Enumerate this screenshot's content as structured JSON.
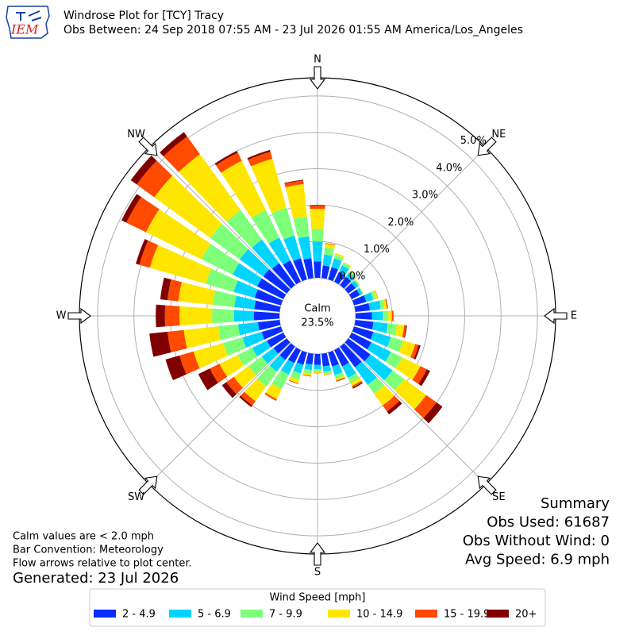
{
  "chart_data": {
    "type": "windrose",
    "title": "Windrose Plot for [TCY] Tracy",
    "subtitle": "Obs Between: 24 Sep 2018 07:55 AM - 23 Jul 2026 01:55 AM America/Los_Angeles",
    "logo_text": "IEM",
    "x": [
      0,
      10,
      20,
      30,
      40,
      50,
      60,
      70,
      80,
      90,
      100,
      110,
      120,
      130,
      140,
      150,
      160,
      170,
      180,
      190,
      200,
      210,
      220,
      230,
      240,
      250,
      260,
      270,
      280,
      290,
      300,
      310,
      320,
      330,
      340,
      350
    ],
    "compass_labels": [
      "N",
      "NE",
      "E",
      "SE",
      "S",
      "SW",
      "W",
      "NW"
    ],
    "ylim": [
      0,
      5.5
    ],
    "yticks": [
      {
        "value": 0,
        "label": "0.0%"
      },
      {
        "value": 1,
        "label": "1.0%"
      },
      {
        "value": 2,
        "label": "2.0%"
      },
      {
        "value": 3,
        "label": "3.0%"
      },
      {
        "value": 4,
        "label": "4.0%"
      },
      {
        "value": 5,
        "label": "5.0%"
      }
    ],
    "grid": true,
    "calm": {
      "name": "Calm",
      "value": 23.5,
      "value_label": "23.5%"
    },
    "legend_title": "Wind Speed [mph]",
    "series": [
      {
        "name": "2 - 4.9",
        "color": "#0a2dff",
        "values": [
          0.45,
          0.35,
          0.35,
          0.3,
          0.28,
          0.25,
          0.25,
          0.35,
          0.4,
          0.45,
          0.5,
          0.55,
          0.6,
          0.75,
          0.7,
          0.5,
          0.4,
          0.35,
          0.3,
          0.3,
          0.35,
          0.4,
          0.45,
          0.45,
          0.5,
          0.55,
          0.6,
          0.7,
          0.7,
          0.75,
          0.8,
          0.8,
          0.75,
          0.65,
          0.6,
          0.55
        ]
      },
      {
        "name": "5 - 6.9",
        "color": "#00d4ff",
        "values": [
          0.55,
          0.3,
          0.25,
          0.2,
          0.15,
          0.1,
          0.08,
          0.2,
          0.3,
          0.3,
          0.4,
          0.5,
          0.6,
          0.75,
          0.6,
          0.35,
          0.25,
          0.15,
          0.12,
          0.15,
          0.25,
          0.35,
          0.4,
          0.4,
          0.45,
          0.55,
          0.55,
          0.55,
          0.55,
          0.6,
          0.75,
          0.8,
          0.8,
          0.7,
          0.65,
          0.6
        ]
      },
      {
        "name": "7 - 9.9",
        "color": "#7dff7a",
        "values": [
          0.35,
          0.2,
          0.1,
          0.08,
          0.05,
          0.03,
          0.02,
          0.08,
          0.1,
          0.15,
          0.25,
          0.35,
          0.35,
          0.4,
          0.3,
          0.15,
          0.1,
          0.05,
          0.06,
          0.1,
          0.18,
          0.45,
          0.5,
          0.45,
          0.45,
          0.55,
          0.55,
          0.6,
          0.6,
          0.8,
          0.95,
          1.0,
          1.0,
          0.85,
          0.8,
          0.55
        ]
      },
      {
        "name": "10 - 14.9",
        "color": "#ffe600",
        "values": [
          0.55,
          0.1,
          0.05,
          0.02,
          0.02,
          0.02,
          0.01,
          0.05,
          0.07,
          0.1,
          0.2,
          0.35,
          0.55,
          0.75,
          0.4,
          0.1,
          0.05,
          0.03,
          0.04,
          0.06,
          0.1,
          0.3,
          0.5,
          0.5,
          0.55,
          0.85,
          0.95,
          0.9,
          0.95,
          1.6,
          1.7,
          1.9,
          1.9,
          1.5,
          1.4,
          0.9
        ]
      },
      {
        "name": "15 - 19.9",
        "color": "#ff4a00",
        "values": [
          0.08,
          0.02,
          0,
          0,
          0,
          0,
          0,
          0.01,
          0.02,
          0.03,
          0.06,
          0.1,
          0.2,
          0.35,
          0.2,
          0.05,
          0.02,
          0.01,
          0.01,
          0.02,
          0.02,
          0.05,
          0.15,
          0.25,
          0.3,
          0.4,
          0.45,
          0.4,
          0.3,
          0.3,
          0.6,
          0.6,
          0.6,
          0.25,
          0.2,
          0.1
        ]
      },
      {
        "name": "20+",
        "color": "#800000",
        "values": [
          0.02,
          0,
          0,
          0,
          0,
          0,
          0,
          0,
          0.01,
          0.01,
          0.02,
          0.05,
          0.1,
          0.2,
          0.1,
          0.03,
          0.01,
          0,
          0,
          0,
          0,
          0,
          0.05,
          0.15,
          0.35,
          0.4,
          0.5,
          0.25,
          0.2,
          0.1,
          0.15,
          0.2,
          0.15,
          0.05,
          0.05,
          0.02
        ]
      }
    ],
    "summary": [
      "Summary",
      "Obs Used: 61687",
      "Obs Without Wind: 0",
      "Avg Speed: 6.9 mph"
    ],
    "notes": [
      "Calm values are < 2.0 mph",
      "Bar Convention: Meteorology",
      "Flow arrows relative to plot center."
    ],
    "generated": "Generated: 23 Jul 2026"
  }
}
